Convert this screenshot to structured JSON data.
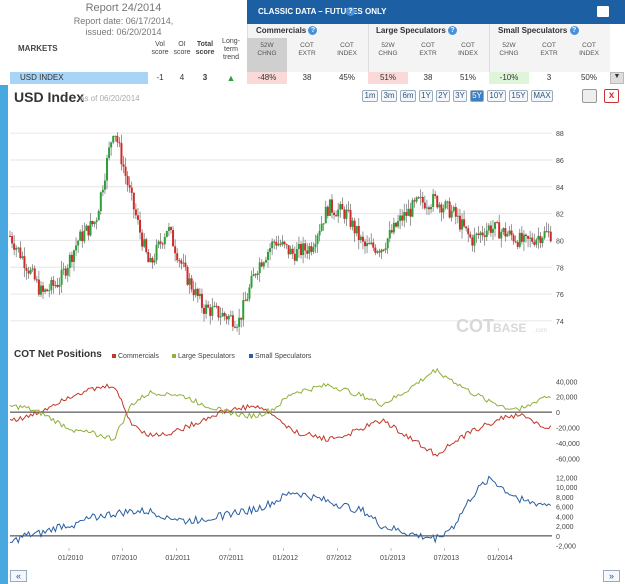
{
  "report": {
    "title": "Report 24/2014",
    "date": "Report date: 06/17/2014,",
    "issued": "issued: 06/20/2014"
  },
  "table": {
    "markets_label": "MARKETS",
    "col_vol": "Vol\nscore",
    "col_oi": "OI\nscore",
    "col_total": "Total\nscore",
    "col_trend": "Long-\nterm\ntrend",
    "classic_title": "CLASSIC DATA – FUTURES ONLY",
    "groups": [
      {
        "name": "Commercials",
        "cols": [
          "52W\nCHNG",
          "COT\nEXTR",
          "COT\nINDEX"
        ],
        "values": [
          "-48%",
          "38",
          "45%"
        ]
      },
      {
        "name": "Large Speculators",
        "cols": [
          "52W\nCHNG",
          "COT\nEXTR",
          "COT\nINDEX"
        ],
        "values": [
          "51%",
          "38",
          "51%"
        ]
      },
      {
        "name": "Small Speculators",
        "cols": [
          "52W\nCHNG",
          "COT\nEXTR",
          "COT\nINDEX"
        ],
        "values": [
          "-10%",
          "3",
          "50%"
        ]
      }
    ],
    "row": {
      "market": "USD INDEX",
      "vol": "-1",
      "oi": "4",
      "total": "3",
      "trend_icon": "up-arrow-icon"
    }
  },
  "chart_header": {
    "title": "USD Index",
    "as_of": "as of 06/20/2014"
  },
  "zoom": [
    "1m",
    "3m",
    "6m",
    "1Y",
    "2Y",
    "3Y",
    "5Y",
    "10Y",
    "15Y",
    "MAX"
  ],
  "zoom_active": "5Y",
  "close_label": "x",
  "nav": {
    "left": "«",
    "right": "»"
  },
  "watermark": {
    "cot": "COT",
    "base": "BASE",
    ".com": ".com"
  },
  "cot_title": "COT Net Positions",
  "colors": {
    "commercials": "#c0392b",
    "large": "#8fb13a",
    "small": "#2b5fa0",
    "up": "#2e9e3a",
    "down": "#d02b2b",
    "accent": "#1d5fa3"
  },
  "chart_data": [
    {
      "type": "candlestick",
      "title": "USD Index",
      "ylim": [
        72.8,
        89.5
      ],
      "yticks": [
        74,
        76,
        78,
        80,
        82,
        84,
        86,
        88
      ],
      "points": [
        [
          "2009-06",
          80.8
        ],
        [
          "2009-08",
          78.5
        ],
        [
          "2009-10",
          76.0
        ],
        [
          "2009-12",
          77.0
        ],
        [
          "2010-02",
          80.0
        ],
        [
          "2010-04",
          81.5
        ],
        [
          "2010-06",
          88.5
        ],
        [
          "2010-08",
          83.0
        ],
        [
          "2010-10",
          78.0
        ],
        [
          "2010-12",
          81.0
        ],
        [
          "2011-02",
          77.5
        ],
        [
          "2011-04",
          75.0
        ],
        [
          "2011-06",
          74.5
        ],
        [
          "2011-08",
          74.0
        ],
        [
          "2011-10",
          78.0
        ],
        [
          "2011-12",
          80.0
        ],
        [
          "2012-02",
          79.0
        ],
        [
          "2012-04",
          79.5
        ],
        [
          "2012-06",
          82.5
        ],
        [
          "2012-08",
          82.0
        ],
        [
          "2012-10",
          79.5
        ],
        [
          "2012-12",
          79.5
        ],
        [
          "2013-02",
          81.5
        ],
        [
          "2013-04",
          82.8
        ],
        [
          "2013-06",
          83.0
        ],
        [
          "2013-08",
          82.0
        ],
        [
          "2013-10",
          80.0
        ],
        [
          "2013-12",
          81.0
        ],
        [
          "2014-02",
          80.5
        ],
        [
          "2014-04",
          79.8
        ],
        [
          "2014-06",
          80.5
        ]
      ]
    },
    {
      "type": "line",
      "title": "COT Net Positions",
      "ylim": [
        -62000,
        52000
      ],
      "yticks": [
        40000,
        20000,
        0,
        -20000,
        -40000,
        -60000
      ],
      "series": [
        {
          "name": "Commercials",
          "values": [
            -10000,
            -8000,
            2000,
            15000,
            25000,
            30000,
            35000,
            -15000,
            -30000,
            -28000,
            -20000,
            -10000,
            0,
            5000,
            8000,
            -5000,
            -25000,
            -30000,
            -35000,
            -30000,
            -20000,
            -10000,
            -25000,
            -40000,
            -55000,
            -40000,
            -25000,
            -15000,
            -5000,
            -5000,
            -20000
          ]
        },
        {
          "name": "Large Speculators",
          "values": [
            8000,
            6000,
            -2000,
            -15000,
            -25000,
            -28000,
            -35000,
            10000,
            25000,
            25000,
            20000,
            10000,
            2000,
            -3000,
            -5000,
            5000,
            25000,
            30000,
            35000,
            28000,
            20000,
            10000,
            22000,
            38000,
            55000,
            40000,
            25000,
            15000,
            5000,
            5000,
            20000
          ]
        },
        {
          "name": "Small Speculators",
          "values": [
            -2000,
            0,
            500,
            2000,
            2500,
            4000,
            4500,
            5000,
            5000,
            4000,
            3000,
            3500,
            4000,
            5000,
            5500,
            7000,
            9000,
            8000,
            7000,
            6000,
            5000,
            2000,
            1000,
            0,
            -500,
            2000,
            8000,
            12000,
            9000,
            7000,
            6500
          ]
        }
      ],
      "x": [
        "2009-06",
        "2009-08",
        "2009-10",
        "2009-12",
        "2010-02",
        "2010-04",
        "2010-06",
        "2010-08",
        "2010-10",
        "2010-12",
        "2011-02",
        "2011-04",
        "2011-06",
        "2011-08",
        "2011-10",
        "2011-12",
        "2012-02",
        "2012-04",
        "2012-06",
        "2012-08",
        "2012-10",
        "2012-12",
        "2013-02",
        "2013-04",
        "2013-06",
        "2013-08",
        "2013-10",
        "2013-12",
        "2014-02",
        "2014-04",
        "2014-06"
      ],
      "small_ylim": [
        -2500,
        13500
      ],
      "small_yticks": [
        12000,
        10000,
        8000,
        6000,
        4000,
        2000,
        0,
        -2000
      ],
      "xticks": [
        "01/2010",
        "07/2010",
        "01/2011",
        "07/2011",
        "01/2012",
        "07/2012",
        "01/2013",
        "07/2013",
        "01/2014"
      ]
    }
  ]
}
